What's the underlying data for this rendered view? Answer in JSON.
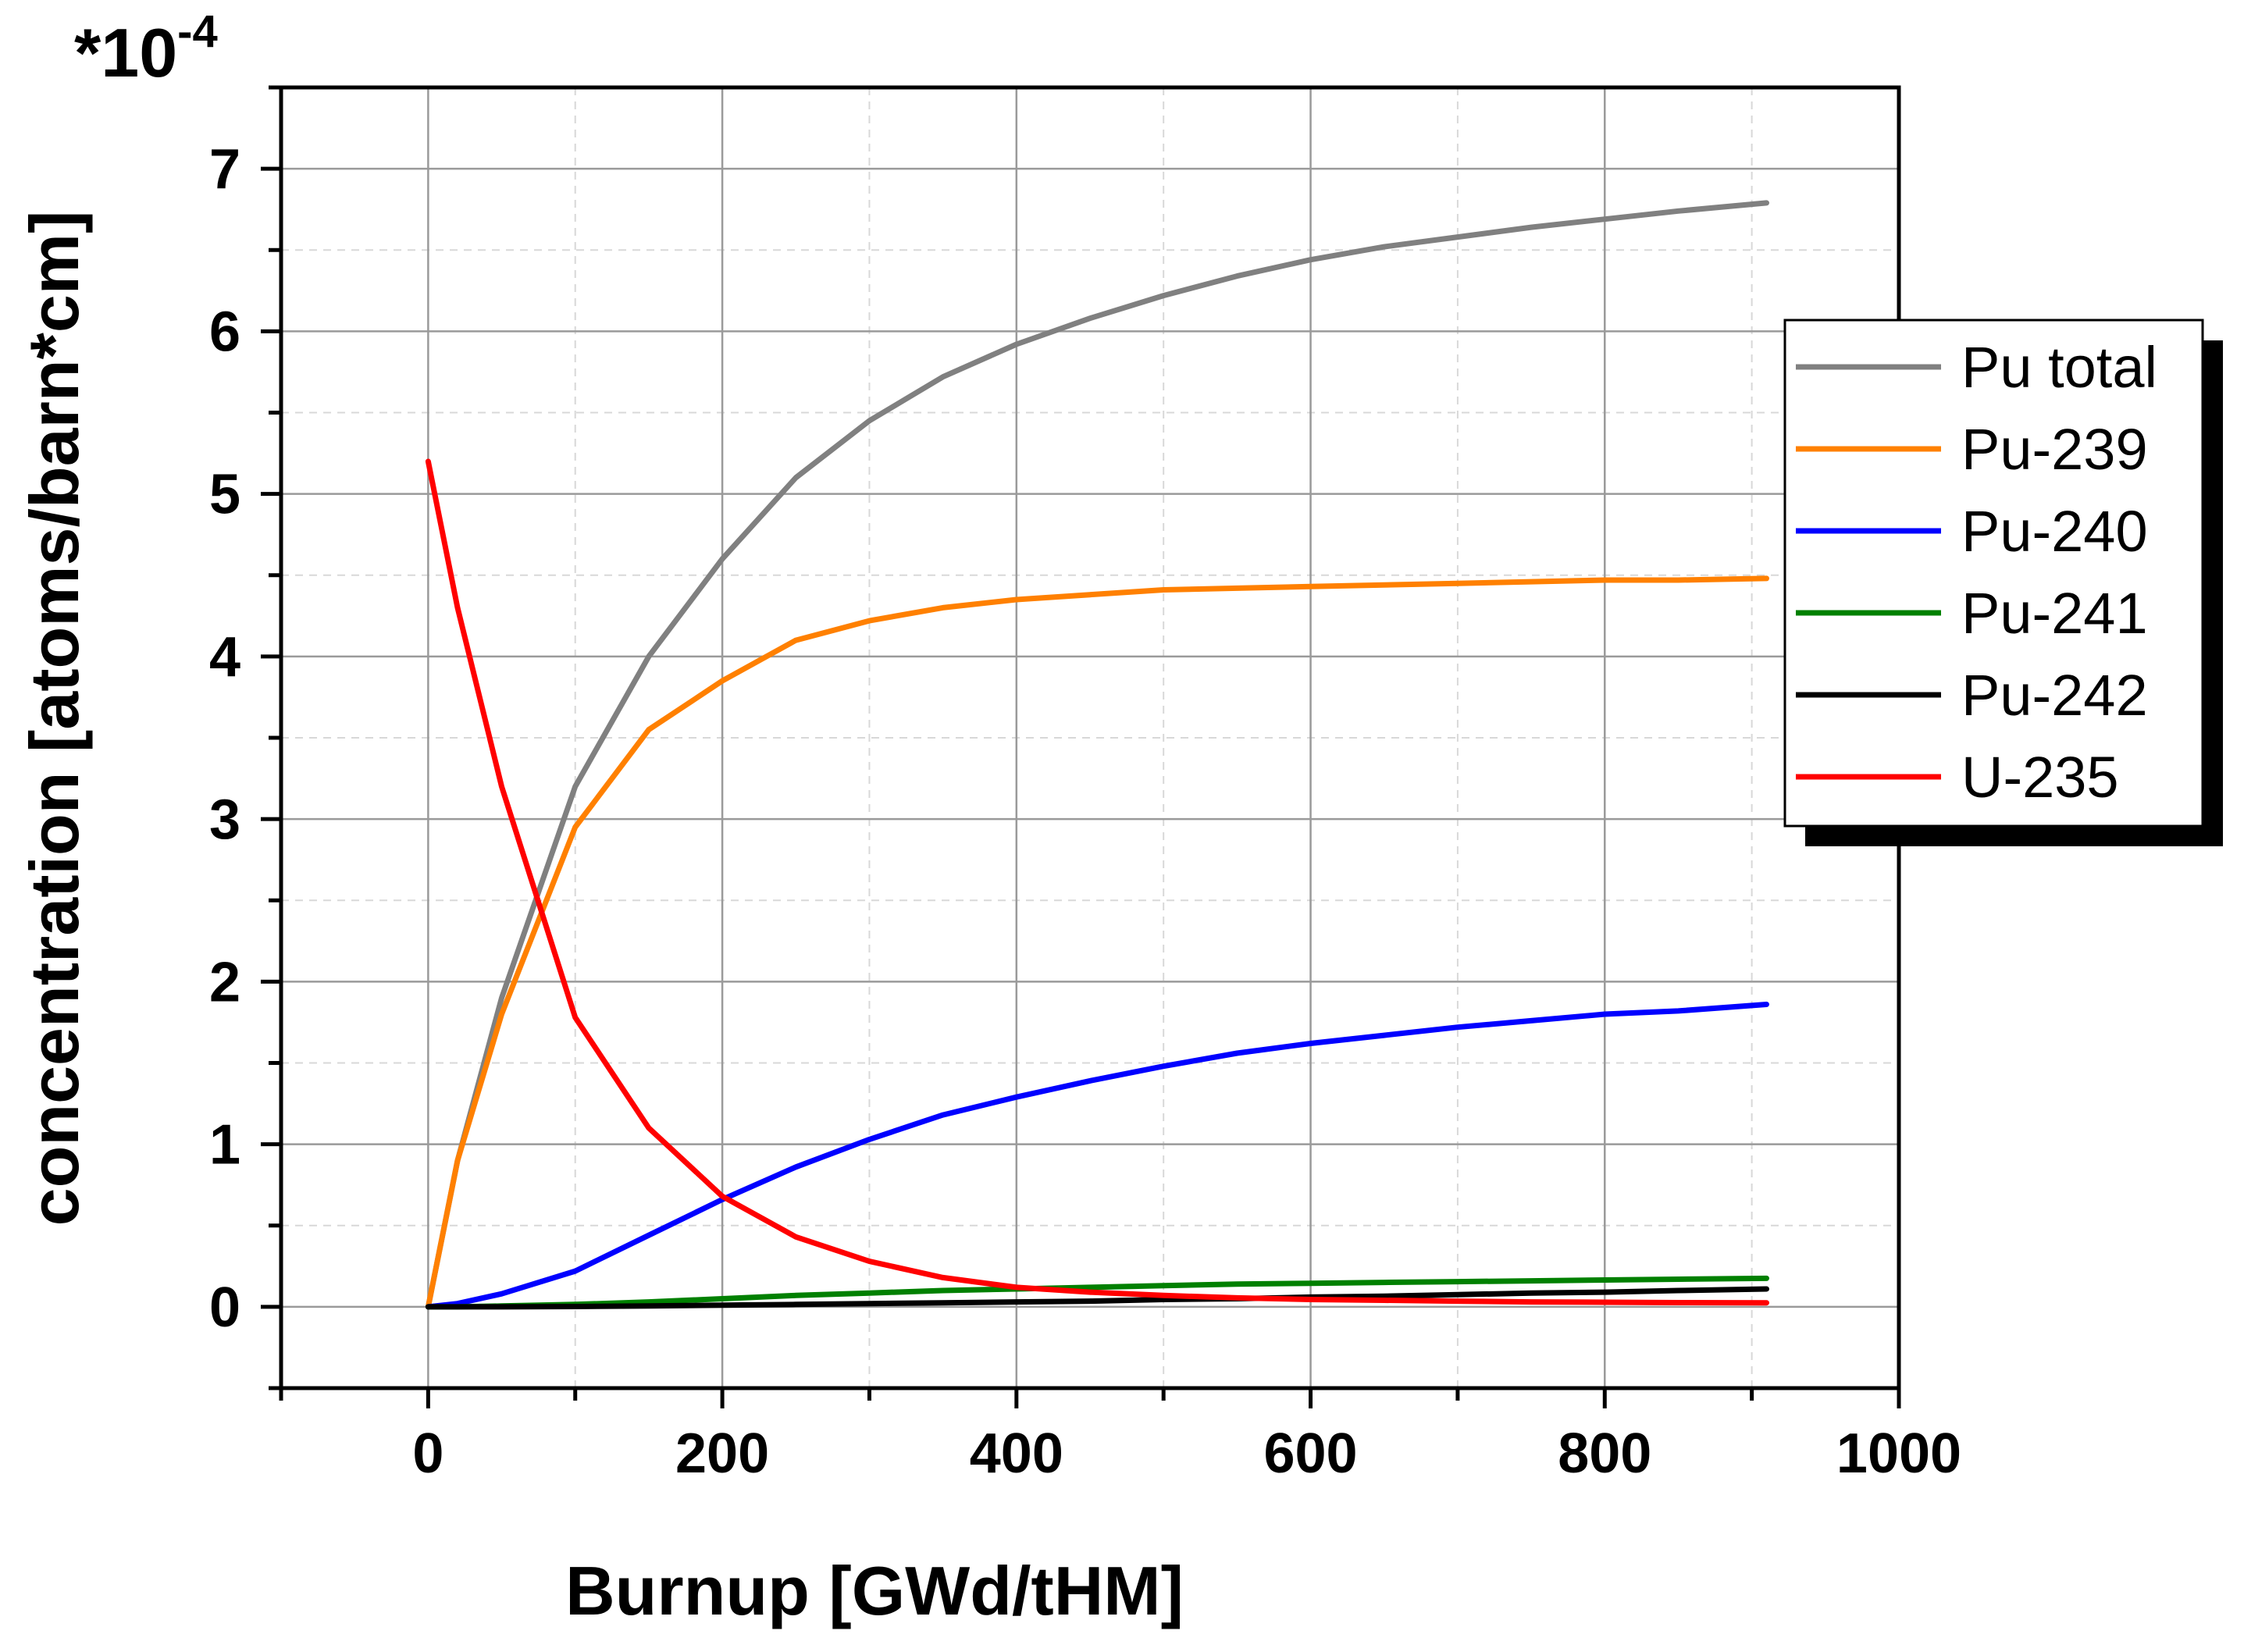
{
  "chart_data": {
    "type": "line",
    "title": "",
    "xlabel": "Burnup [GWd/tHM]",
    "ylabel": "concentration [atoms/barn*cm]",
    "y_multiplier": {
      "base": "*10",
      "exponent": "-4"
    },
    "xlim": [
      -100,
      1000
    ],
    "ylim": [
      -0.5,
      7.5
    ],
    "x_ticks": [
      0,
      200,
      400,
      600,
      800,
      1000
    ],
    "y_ticks": [
      0,
      1,
      2,
      3,
      4,
      5,
      6,
      7
    ],
    "grid": true,
    "legend_position": "right",
    "x": [
      0,
      20,
      50,
      100,
      150,
      200,
      250,
      300,
      350,
      400,
      450,
      500,
      550,
      600,
      650,
      700,
      750,
      800,
      850,
      910
    ],
    "series": [
      {
        "name": "Pu total",
        "color": "#808080",
        "values": [
          0,
          0.9,
          1.9,
          3.2,
          4.0,
          4.6,
          5.1,
          5.45,
          5.72,
          5.92,
          6.08,
          6.22,
          6.34,
          6.44,
          6.52,
          6.58,
          6.64,
          6.69,
          6.74,
          6.79
        ]
      },
      {
        "name": "Pu-239",
        "color": "#ff8000",
        "values": [
          0,
          0.9,
          1.8,
          2.95,
          3.55,
          3.85,
          4.1,
          4.22,
          4.3,
          4.35,
          4.38,
          4.41,
          4.42,
          4.43,
          4.44,
          4.45,
          4.46,
          4.47,
          4.47,
          4.48
        ]
      },
      {
        "name": "Pu-240",
        "color": "#0000ff",
        "values": [
          0,
          0.02,
          0.08,
          0.22,
          0.44,
          0.66,
          0.86,
          1.03,
          1.18,
          1.29,
          1.39,
          1.48,
          1.56,
          1.62,
          1.67,
          1.72,
          1.76,
          1.8,
          1.82,
          1.86
        ]
      },
      {
        "name": "Pu-241",
        "color": "#008000",
        "values": [
          0,
          0,
          0.005,
          0.015,
          0.03,
          0.05,
          0.07,
          0.085,
          0.1,
          0.11,
          0.12,
          0.13,
          0.14,
          0.145,
          0.15,
          0.155,
          0.16,
          0.165,
          0.17,
          0.175
        ]
      },
      {
        "name": "Pu-242",
        "color": "#000000",
        "values": [
          0,
          0,
          0,
          0.002,
          0.005,
          0.01,
          0.015,
          0.02,
          0.025,
          0.03,
          0.035,
          0.045,
          0.05,
          0.06,
          0.065,
          0.075,
          0.085,
          0.09,
          0.1,
          0.11
        ]
      },
      {
        "name": "U-235",
        "color": "#ff0000",
        "values": [
          5.2,
          4.3,
          3.2,
          1.78,
          1.1,
          0.68,
          0.43,
          0.28,
          0.18,
          0.12,
          0.09,
          0.07,
          0.055,
          0.045,
          0.04,
          0.035,
          0.03,
          0.028,
          0.026,
          0.025
        ]
      }
    ]
  }
}
